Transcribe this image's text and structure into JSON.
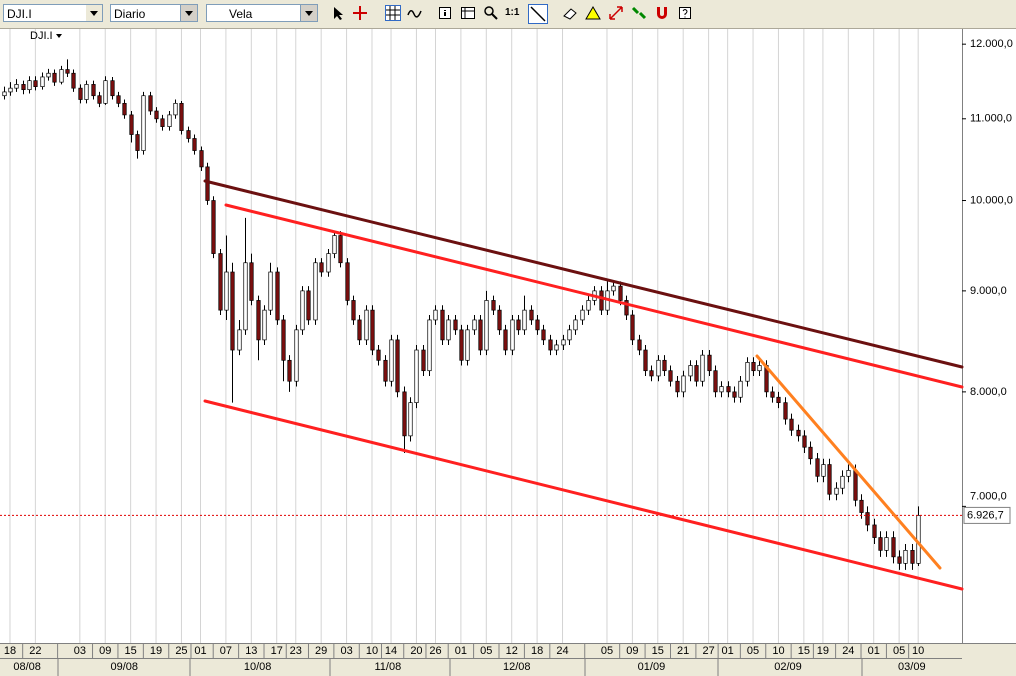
{
  "toolbar": {
    "symbol": "DJI.I",
    "period": "Diario",
    "style": "Vela",
    "zoom": "1:1"
  },
  "chart_data": {
    "type": "candlestick",
    "symbol": "DJI.I",
    "log_scale": true,
    "up_color": "#ffffff",
    "down_color": "#7a0f0f",
    "ylim": [
      5990,
      12200
    ],
    "yticks": [
      {
        "value": 8000,
        "label": "8.000,0"
      },
      {
        "value": 9000,
        "label": "9.000,0"
      },
      {
        "value": 10000,
        "label": "10.000,0"
      },
      {
        "value": 11000,
        "label": "11.000,0"
      },
      {
        "value": 12000,
        "label": "12.000,0"
      }
    ],
    "y_cut_tick": {
      "value": 7000,
      "label": "7.000,0"
    },
    "last_price": {
      "value": 6926.7,
      "label": "6.926,7"
    },
    "xlim": [
      -0.57,
      150.9
    ],
    "xticks": [
      {
        "value": 1,
        "label": "18"
      },
      {
        "value": 5,
        "label": "22"
      },
      {
        "value": 12,
        "label": "03"
      },
      {
        "value": 16,
        "label": "09"
      },
      {
        "value": 20,
        "label": "15"
      },
      {
        "value": 24,
        "label": "19"
      },
      {
        "value": 28,
        "label": "25"
      },
      {
        "value": 31,
        "label": "01"
      },
      {
        "value": 35,
        "label": "07"
      },
      {
        "value": 39,
        "label": "13"
      },
      {
        "value": 43,
        "label": "17"
      },
      {
        "value": 46,
        "label": "23"
      },
      {
        "value": 50,
        "label": "29"
      },
      {
        "value": 54,
        "label": "03"
      },
      {
        "value": 58,
        "label": "10"
      },
      {
        "value": 61,
        "label": "14"
      },
      {
        "value": 65,
        "label": "20"
      },
      {
        "value": 68,
        "label": "26"
      },
      {
        "value": 72,
        "label": "01"
      },
      {
        "value": 76,
        "label": "05"
      },
      {
        "value": 80,
        "label": "12"
      },
      {
        "value": 84,
        "label": "18"
      },
      {
        "value": 88,
        "label": "24"
      },
      {
        "value": 95,
        "label": "05"
      },
      {
        "value": 99,
        "label": "09"
      },
      {
        "value": 103,
        "label": "15"
      },
      {
        "value": 107,
        "label": "21"
      },
      {
        "value": 111,
        "label": "27"
      },
      {
        "value": 114,
        "label": "01"
      },
      {
        "value": 118,
        "label": "05"
      },
      {
        "value": 122,
        "label": "10"
      },
      {
        "value": 126,
        "label": "15"
      },
      {
        "value": 129,
        "label": "19"
      },
      {
        "value": 133,
        "label": "24"
      },
      {
        "value": 137,
        "label": "01"
      },
      {
        "value": 141,
        "label": "05"
      },
      {
        "value": 144,
        "label": "10"
      }
    ],
    "month_labels": [
      {
        "value": 3.7,
        "label": "08/08"
      },
      {
        "value": 19,
        "label": "09/08"
      },
      {
        "value": 40,
        "label": "10/08"
      },
      {
        "value": 60.5,
        "label": "11/08"
      },
      {
        "value": 80.8,
        "label": "12/08"
      },
      {
        "value": 102,
        "label": "01/09"
      },
      {
        "value": 123.5,
        "label": "02/09"
      },
      {
        "value": 143,
        "label": "03/09"
      }
    ],
    "ohlc": [
      [
        11300,
        11420,
        11250,
        11350
      ],
      [
        11350,
        11480,
        11300,
        11400
      ],
      [
        11400,
        11520,
        11350,
        11450
      ],
      [
        11450,
        11500,
        11320,
        11380
      ],
      [
        11380,
        11560,
        11330,
        11500
      ],
      [
        11500,
        11560,
        11370,
        11420
      ],
      [
        11420,
        11610,
        11380,
        11550
      ],
      [
        11550,
        11660,
        11500,
        11600
      ],
      [
        11600,
        11650,
        11430,
        11480
      ],
      [
        11480,
        11700,
        11450,
        11650
      ],
      [
        11650,
        11790,
        11550,
        11600
      ],
      [
        11600,
        11650,
        11350,
        11400
      ],
      [
        11400,
        11450,
        11200,
        11250
      ],
      [
        11250,
        11500,
        11200,
        11450
      ],
      [
        11450,
        11500,
        11250,
        11300
      ],
      [
        11300,
        11350,
        11150,
        11200
      ],
      [
        11200,
        11560,
        11180,
        11500
      ],
      [
        11500,
        11550,
        11250,
        11300
      ],
      [
        11300,
        11350,
        11150,
        11200
      ],
      [
        11200,
        11250,
        11000,
        11050
      ],
      [
        11050,
        11100,
        10700,
        10800
      ],
      [
        10800,
        10850,
        10500,
        10600
      ],
      [
        10600,
        11350,
        10550,
        11300
      ],
      [
        11300,
        11350,
        11050,
        11100
      ],
      [
        11100,
        11150,
        10950,
        11000
      ],
      [
        11000,
        11050,
        10850,
        10900
      ],
      [
        10900,
        11100,
        10850,
        11050
      ],
      [
        11050,
        11250,
        11000,
        11200
      ],
      [
        11200,
        11230,
        10800,
        10850
      ],
      [
        10850,
        10900,
        10700,
        10750
      ],
      [
        10750,
        10800,
        10550,
        10600
      ],
      [
        10600,
        10650,
        10350,
        10400
      ],
      [
        10400,
        10450,
        9950,
        10000
      ],
      [
        10000,
        10050,
        9350,
        9400
      ],
      [
        9400,
        9450,
        8750,
        8800
      ],
      [
        8800,
        9600,
        8700,
        9200
      ],
      [
        9200,
        9300,
        7900,
        8400
      ],
      [
        8400,
        8700,
        8350,
        8600
      ],
      [
        8600,
        9800,
        8550,
        9300
      ],
      [
        9300,
        9400,
        8850,
        8900
      ],
      [
        8900,
        8950,
        8300,
        8500
      ],
      [
        8500,
        8850,
        8450,
        8800
      ],
      [
        8800,
        9300,
        8750,
        9200
      ],
      [
        9200,
        9250,
        8650,
        8700
      ],
      [
        8700,
        8750,
        8100,
        8300
      ],
      [
        8300,
        8350,
        8000,
        8100
      ],
      [
        8100,
        8650,
        8050,
        8600
      ],
      [
        8600,
        9050,
        8550,
        9000
      ],
      [
        9000,
        9050,
        8650,
        8700
      ],
      [
        8700,
        9350,
        8650,
        9300
      ],
      [
        9300,
        9350,
        9150,
        9200
      ],
      [
        9200,
        9450,
        9150,
        9400
      ],
      [
        9400,
        9650,
        9350,
        9600
      ],
      [
        9600,
        9650,
        9250,
        9300
      ],
      [
        9300,
        9350,
        8850,
        8900
      ],
      [
        8900,
        8950,
        8650,
        8700
      ],
      [
        8700,
        8750,
        8450,
        8500
      ],
      [
        8500,
        8850,
        8450,
        8800
      ],
      [
        8800,
        8850,
        8350,
        8400
      ],
      [
        8400,
        8450,
        8250,
        8300
      ],
      [
        8300,
        8350,
        8050,
        8100
      ],
      [
        8100,
        8550,
        8050,
        8500
      ],
      [
        8500,
        8550,
        7950,
        8000
      ],
      [
        8000,
        8050,
        7450,
        7600
      ],
      [
        7600,
        7950,
        7550,
        7900
      ],
      [
        7900,
        8450,
        7850,
        8400
      ],
      [
        8400,
        8450,
        8150,
        8200
      ],
      [
        8200,
        8750,
        8150,
        8700
      ],
      [
        8700,
        8850,
        8650,
        8800
      ],
      [
        8800,
        8850,
        8450,
        8500
      ],
      [
        8500,
        8750,
        8450,
        8700
      ],
      [
        8700,
        8750,
        8550,
        8600
      ],
      [
        8600,
        8650,
        8250,
        8300
      ],
      [
        8300,
        8650,
        8250,
        8600
      ],
      [
        8600,
        8750,
        8550,
        8700
      ],
      [
        8700,
        8750,
        8350,
        8400
      ],
      [
        8400,
        9000,
        8350,
        8900
      ],
      [
        8900,
        8950,
        8750,
        8800
      ],
      [
        8800,
        8850,
        8550,
        8600
      ],
      [
        8600,
        8650,
        8350,
        8400
      ],
      [
        8400,
        8750,
        8350,
        8700
      ],
      [
        8700,
        8750,
        8550,
        8600
      ],
      [
        8600,
        8950,
        8550,
        8800
      ],
      [
        8800,
        8850,
        8650,
        8700
      ],
      [
        8700,
        8750,
        8550,
        8600
      ],
      [
        8600,
        8650,
        8450,
        8500
      ],
      [
        8500,
        8550,
        8350,
        8400
      ],
      [
        8400,
        8500,
        8350,
        8450
      ],
      [
        8450,
        8550,
        8400,
        8500
      ],
      [
        8500,
        8650,
        8450,
        8600
      ],
      [
        8600,
        8750,
        8550,
        8700
      ],
      [
        8700,
        8850,
        8650,
        8800
      ],
      [
        8800,
        8950,
        8750,
        8900
      ],
      [
        8900,
        9050,
        8850,
        9000
      ],
      [
        9000,
        9050,
        8750,
        8800
      ],
      [
        8800,
        9100,
        8750,
        9000
      ],
      [
        9000,
        9100,
        8950,
        9050
      ],
      [
        9050,
        9100,
        8850,
        8900
      ],
      [
        8900,
        8950,
        8700,
        8750
      ],
      [
        8750,
        8800,
        8450,
        8500
      ],
      [
        8500,
        8550,
        8350,
        8400
      ],
      [
        8400,
        8450,
        8150,
        8200
      ],
      [
        8200,
        8250,
        8100,
        8150
      ],
      [
        8150,
        8350,
        8100,
        8300
      ],
      [
        8300,
        8350,
        8150,
        8200
      ],
      [
        8200,
        8250,
        8050,
        8100
      ],
      [
        8100,
        8150,
        7950,
        8000
      ],
      [
        8000,
        8200,
        7950,
        8150
      ],
      [
        8150,
        8300,
        8100,
        8250
      ],
      [
        8250,
        8300,
        8050,
        8100
      ],
      [
        8100,
        8400,
        8050,
        8350
      ],
      [
        8350,
        8400,
        8150,
        8200
      ],
      [
        8200,
        8250,
        7950,
        8000
      ],
      [
        8000,
        8100,
        7950,
        8050
      ],
      [
        8050,
        8100,
        7950,
        8000
      ],
      [
        8000,
        8050,
        7900,
        7950
      ],
      [
        7950,
        8150,
        7900,
        8100
      ],
      [
        8100,
        8330,
        8050,
        8280
      ],
      [
        8280,
        8330,
        8150,
        8200
      ],
      [
        8200,
        8300,
        8150,
        8250
      ],
      [
        8250,
        8300,
        7950,
        8000
      ],
      [
        8000,
        8050,
        7900,
        7950
      ],
      [
        7950,
        8000,
        7850,
        7900
      ],
      [
        7900,
        7950,
        7700,
        7750
      ],
      [
        7750,
        7800,
        7600,
        7650
      ],
      [
        7650,
        7700,
        7550,
        7600
      ],
      [
        7600,
        7650,
        7450,
        7500
      ],
      [
        7500,
        7550,
        7350,
        7400
      ],
      [
        7400,
        7450,
        7200,
        7250
      ],
      [
        7250,
        7400,
        7200,
        7350
      ],
      [
        7350,
        7400,
        7050,
        7100
      ],
      [
        7100,
        7200,
        7050,
        7150
      ],
      [
        7150,
        7300,
        7100,
        7250
      ],
      [
        7250,
        7350,
        7200,
        7300
      ],
      [
        7300,
        7350,
        7000,
        7050
      ],
      [
        7050,
        7100,
        6900,
        6950
      ],
      [
        6950,
        7000,
        6800,
        6850
      ],
      [
        6850,
        6900,
        6700,
        6750
      ],
      [
        6750,
        6800,
        6600,
        6650
      ],
      [
        6650,
        6800,
        6600,
        6750
      ],
      [
        6750,
        6800,
        6550,
        6600
      ],
      [
        6600,
        6650,
        6500,
        6550
      ],
      [
        6550,
        6700,
        6500,
        6650
      ],
      [
        6650,
        6700,
        6500,
        6550
      ],
      [
        6550,
        7000,
        6530,
        6926.7
      ]
    ]
  }
}
